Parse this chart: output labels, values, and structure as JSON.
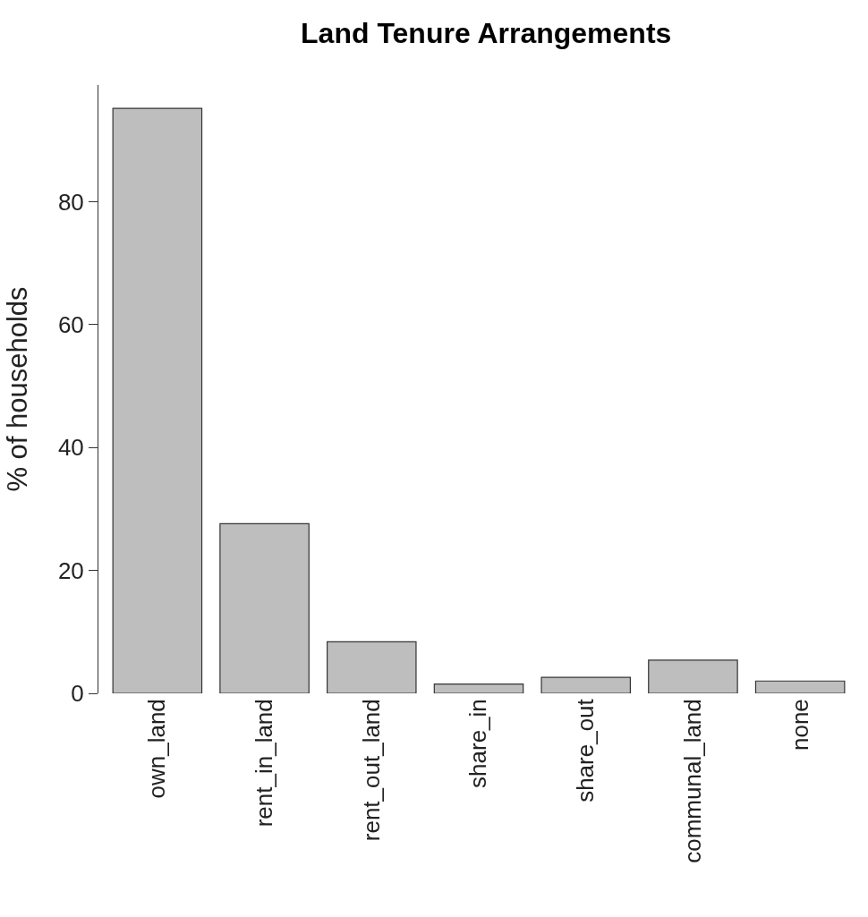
{
  "chart_data": {
    "type": "bar",
    "title": "Land Tenure Arrangements",
    "ylabel": "% of households",
    "categories": [
      "own_land",
      "rent_in_land",
      "rent_out_land",
      "share_in",
      "share_out",
      "communal_land",
      "none"
    ],
    "values": [
      95.2,
      27.6,
      8.4,
      1.5,
      2.6,
      5.4,
      2.0
    ],
    "color": "#bebebe",
    "ylim": [
      0,
      99
    ],
    "yticks": [
      0,
      20,
      40,
      60,
      80
    ]
  }
}
